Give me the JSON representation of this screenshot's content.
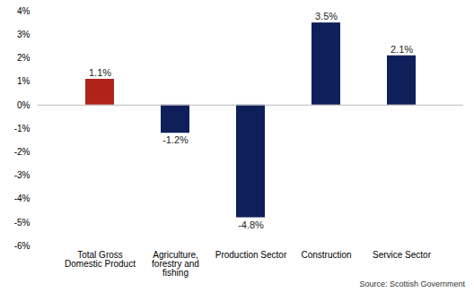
{
  "chart_data": {
    "type": "bar",
    "caption": "Source: Scottish Government",
    "categories": [
      "Total Gross Domestic Product",
      "Agriculture, forestry and fishing",
      "Production Sector",
      "Construction",
      "Service Sector"
    ],
    "values": [
      1.1,
      -1.2,
      -4.8,
      3.5,
      2.1
    ],
    "value_labels": [
      "1.1%",
      "-1.2%",
      "-4.8%",
      "3.5%",
      "2.1%"
    ],
    "colors": [
      "#b0231b",
      "#0f1f5a",
      "#0f1f5a",
      "#0f1f5a",
      "#0f1f5a"
    ],
    "ylim": [
      -6,
      4
    ],
    "yticks": [
      {
        "value": -6,
        "label": "-6%"
      },
      {
        "value": -5,
        "label": "-5%"
      },
      {
        "value": -4,
        "label": "-4%"
      },
      {
        "value": -3,
        "label": "-3%"
      },
      {
        "value": -2,
        "label": "-2%"
      },
      {
        "value": -1,
        "label": "-1%"
      },
      {
        "value": 0,
        "label": "0%"
      },
      {
        "value": 1,
        "label": "1%"
      },
      {
        "value": 2,
        "label": "2%"
      },
      {
        "value": 3,
        "label": "3%"
      },
      {
        "value": 4,
        "label": "4%"
      }
    ],
    "grid": false,
    "data_labels": true
  }
}
